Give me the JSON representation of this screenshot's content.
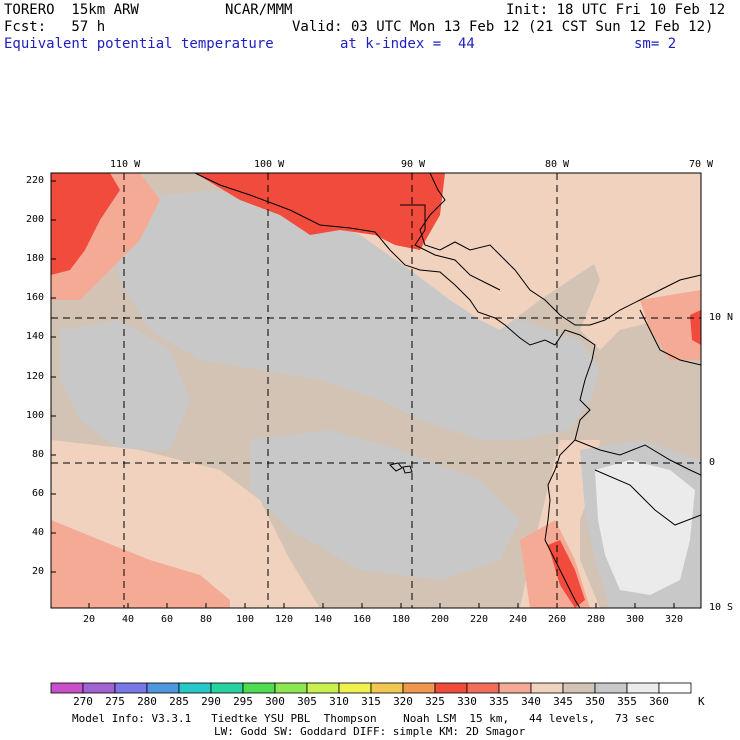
{
  "header": {
    "model": "TORERO  15km ARW",
    "center": "NCAR/MMM",
    "init": "Init: 18 UTC Fri 10 Feb 12",
    "fcst": "Fcst:   57 h",
    "valid": "Valid: 03 UTC Mon 13 Feb 12 (21 CST Sun 12 Feb 12)",
    "field": "Equivalent potential temperature",
    "level": "at k-index =  44",
    "smooth": "sm= 2"
  },
  "top_lon_labels": [
    "110 W",
    "100 W",
    "90 W",
    "80 W",
    "70 W"
  ],
  "right_lat_labels": [
    "10 N",
    "0",
    "10 S"
  ],
  "y_ticks": [
    "220",
    "200",
    "180",
    "160",
    "140",
    "120",
    "100",
    "80",
    "60",
    "40",
    "20"
  ],
  "x_ticks": [
    "20",
    "40",
    "60",
    "80",
    "100",
    "120",
    "140",
    "160",
    "180",
    "200",
    "220",
    "240",
    "260",
    "280",
    "300",
    "320"
  ],
  "colorbar": {
    "labels": [
      "270",
      "275",
      "280",
      "285",
      "290",
      "295",
      "300",
      "305",
      "310",
      "315",
      "320",
      "325",
      "330",
      "335",
      "340",
      "345",
      "350",
      "355",
      "360"
    ],
    "unit": "K",
    "colors": [
      "#c850c8",
      "#a064d2",
      "#7878e6",
      "#5096dc",
      "#28c8c8",
      "#28d2a0",
      "#50dc50",
      "#8ce650",
      "#c8f050",
      "#f0f050",
      "#f0c850",
      "#f09650",
      "#f04b3c",
      "#f06e5a",
      "#f5aa96",
      "#f0d2be",
      "#d2c3b4",
      "#c8c8c8",
      "#ebebeb",
      "#ffffff"
    ]
  },
  "footer": {
    "line1": "Model Info: V3.3.1   Tiedtke YSU PBL  Thompson    Noah LSM  15 km,   44 levels,   73 sec",
    "line2": "LW: Godd SW: Goddard DIFF: simple KM: 2D Smagor"
  }
}
